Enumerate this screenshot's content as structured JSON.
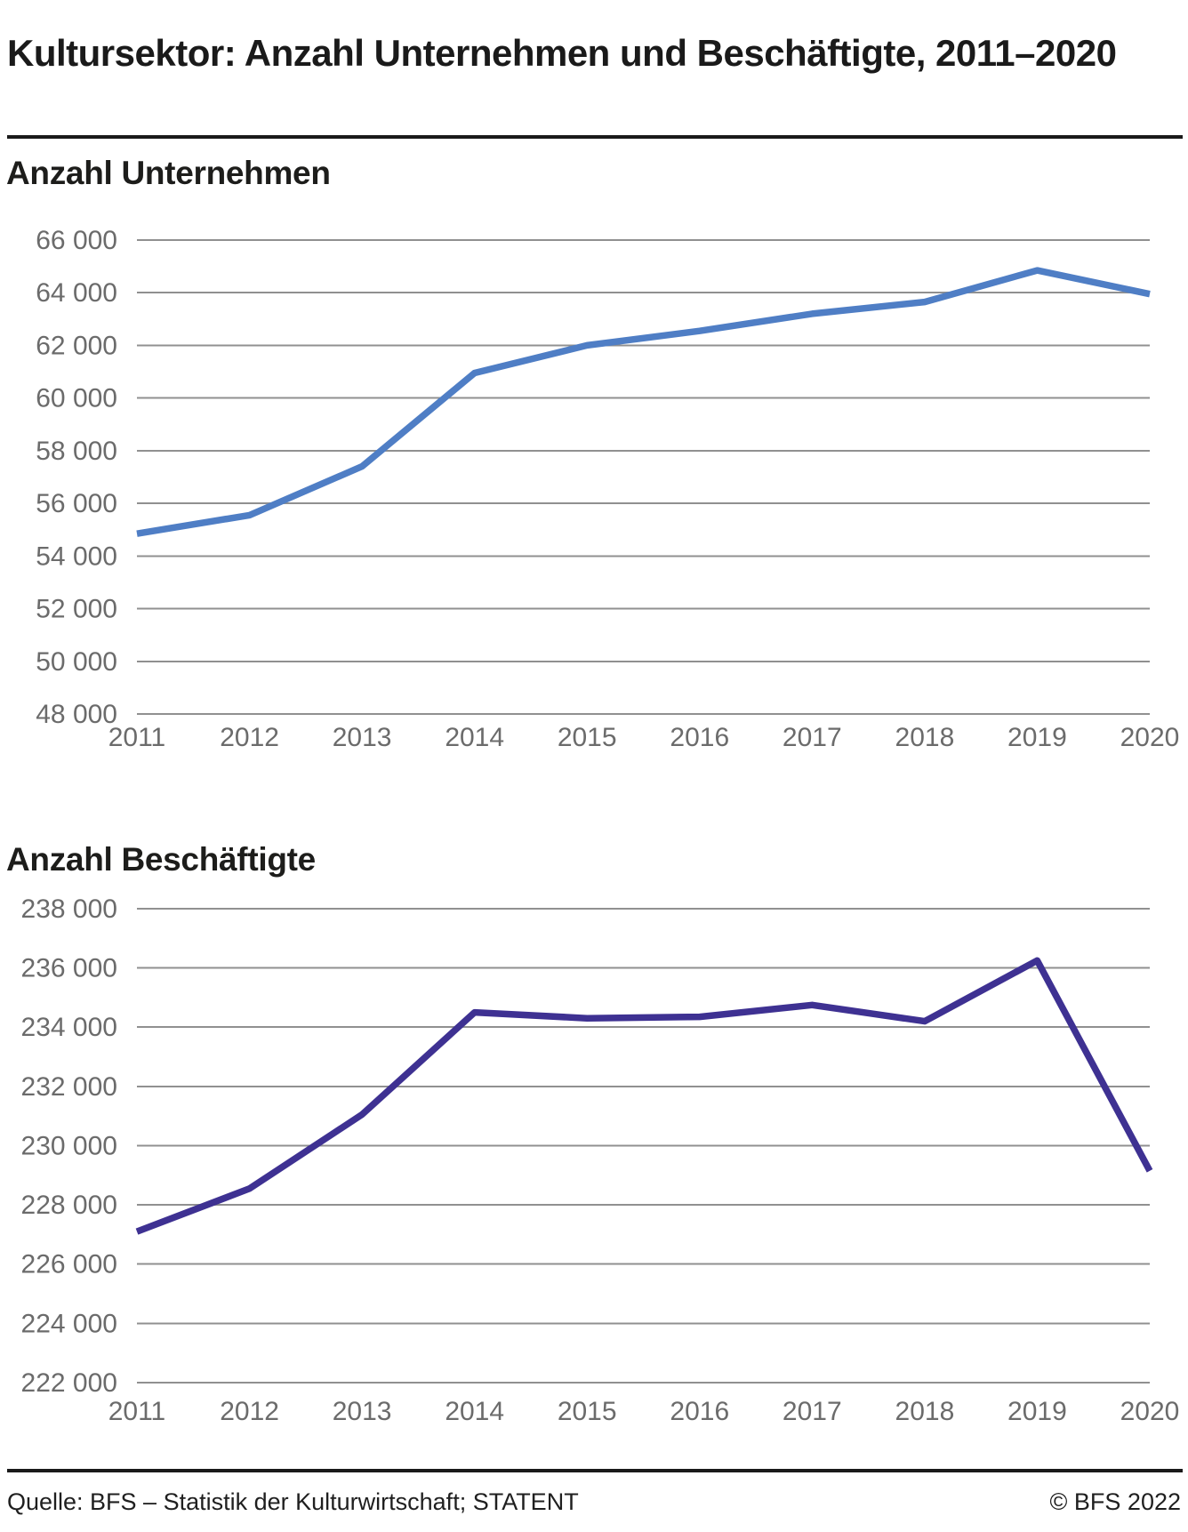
{
  "header": {
    "title": "Kultursektor: Anzahl Unternehmen und Beschäftigte, 2011–2020"
  },
  "chart_data": [
    {
      "type": "line",
      "title": "Anzahl Unternehmen",
      "x": [
        "2011",
        "2012",
        "2013",
        "2014",
        "2015",
        "2016",
        "2017",
        "2018",
        "2019",
        "2020"
      ],
      "series": [
        {
          "name": "Anzahl Unternehmen",
          "color": "#4f7ec5",
          "values": [
            54850,
            55550,
            57400,
            60950,
            62000,
            62550,
            63200,
            63650,
            64850,
            63950
          ]
        }
      ],
      "ylim": [
        48000,
        66000
      ],
      "ytick_step": 2000,
      "ytick_labels": [
        "66 000",
        "64 000",
        "62 000",
        "60 000",
        "58 000",
        "56 000",
        "54 000",
        "52 000",
        "50 000",
        "48 000"
      ],
      "xlabel": "",
      "ylabel": "",
      "grid": true,
      "legend": "none"
    },
    {
      "type": "line",
      "title": "Anzahl Beschäftigte",
      "x": [
        "2011",
        "2012",
        "2013",
        "2014",
        "2015",
        "2016",
        "2017",
        "2018",
        "2019",
        "2020"
      ],
      "series": [
        {
          "name": "Anzahl Beschäftigte",
          "color": "#3e3192",
          "values": [
            227100,
            228550,
            231050,
            234500,
            234300,
            234350,
            234750,
            234200,
            236250,
            229150
          ]
        }
      ],
      "ylim": [
        222000,
        238000
      ],
      "ytick_step": 2000,
      "ytick_labels": [
        "238 000",
        "236 000",
        "234 000",
        "232 000",
        "230 000",
        "228 000",
        "226 000",
        "224 000",
        "222 000"
      ],
      "xlabel": "",
      "ylabel": "",
      "grid": true,
      "legend": "none"
    }
  ],
  "footer": {
    "source": "Quelle: BFS – Statistik der Kulturwirtschaft; STATENT",
    "copyright": "© BFS 2022"
  },
  "colors": {
    "line_unternehmen": "#4f7ec5",
    "line_beschaeftigte": "#3e3192",
    "grid": "#909090",
    "axis_label": "#6b6b6b",
    "text": "#1a1a1a",
    "rule": "#1a1a1a",
    "background": "#ffffff"
  }
}
